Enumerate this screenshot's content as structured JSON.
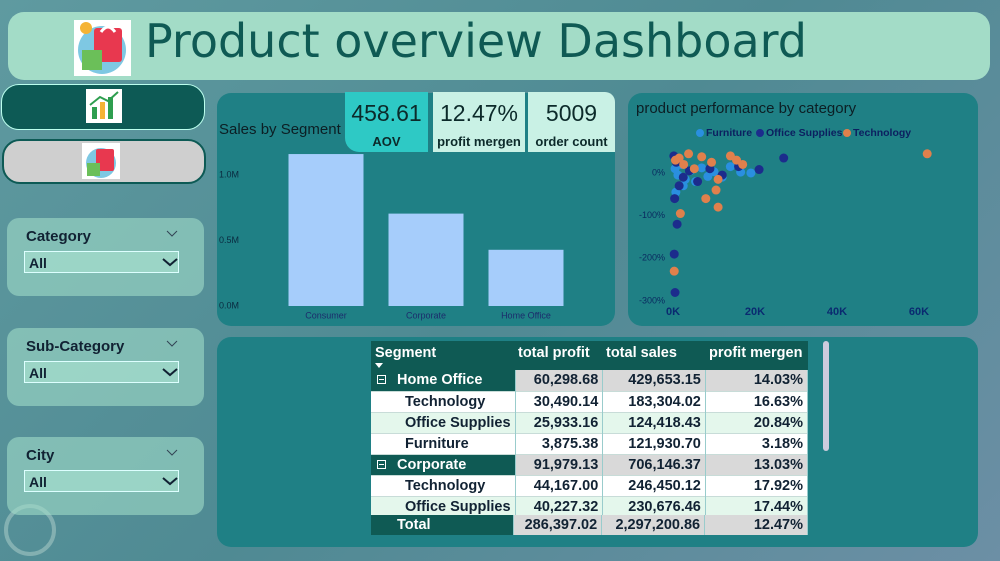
{
  "header": {
    "title": "Product overview Dashboard"
  },
  "kpis": [
    {
      "value": "458.61",
      "label": "AOV"
    },
    {
      "value": "12.47%",
      "label": "profit mergen"
    },
    {
      "value": "5009",
      "label": "order count"
    }
  ],
  "filters": [
    {
      "label": "Category",
      "selected": "All"
    },
    {
      "label": "Sub-Category",
      "selected": "All"
    },
    {
      "label": "City",
      "selected": "All"
    }
  ],
  "chart_data": [
    {
      "type": "bar",
      "title": "Sales by Segment",
      "categories": [
        "Consumer",
        "Corporate",
        "Home Office"
      ],
      "values": [
        1161401.34,
        706146.37,
        429653.15
      ],
      "color": "#a6cdfb",
      "ylim": [
        0,
        1200000
      ],
      "yticks": [
        {
          "value": 0,
          "label": "0.0M"
        },
        {
          "value": 500000,
          "label": "0.5M"
        },
        {
          "value": 1000000,
          "label": "1.0M"
        }
      ]
    },
    {
      "type": "scatter",
      "title": "product performance by category",
      "series": [
        {
          "name": "Furniture",
          "color": "#2a8fe0",
          "x": [
            500,
            1200,
            2000,
            3000,
            4200,
            5500,
            7000,
            8500,
            10000,
            12000,
            14000,
            16500,
            19000,
            700,
            2500
          ],
          "values": [
            10,
            -5,
            20,
            -15,
            5,
            -20,
            12,
            -8,
            3,
            -10,
            15,
            2,
            0,
            -45,
            -30
          ]
        },
        {
          "name": "Office Supplies",
          "color": "#1c2c8c",
          "x": [
            200,
            400,
            800,
            1500,
            2500,
            4000,
            6000,
            9000,
            12000,
            16000,
            21000,
            27000,
            300,
            500,
            1000
          ],
          "values": [
            40,
            -60,
            25,
            -30,
            -10,
            5,
            -20,
            10,
            -5,
            15,
            8,
            35,
            -190,
            -280,
            -120
          ]
        },
        {
          "name": "Technology",
          "color": "#e0804c",
          "x": [
            600,
            1500,
            2600,
            3800,
            5200,
            7000,
            9400,
            11000,
            14000,
            17000,
            11000,
            8000,
            10500,
            15500,
            62000,
            300,
            1800
          ],
          "values": [
            30,
            35,
            20,
            45,
            10,
            38,
            25,
            -15,
            40,
            20,
            -80,
            -60,
            -40,
            30,
            45,
            -230,
            -95
          ]
        }
      ],
      "xlim": [
        0,
        63000
      ],
      "ylim": [
        -310,
        55
      ],
      "xticks": [
        {
          "value": 0,
          "label": "0K"
        },
        {
          "value": 20000,
          "label": "20K"
        },
        {
          "value": 40000,
          "label": "40K"
        },
        {
          "value": 60000,
          "label": "60K"
        }
      ],
      "yticks": [
        {
          "value": 0,
          "label": "0%"
        },
        {
          "value": -100,
          "label": "-100%"
        },
        {
          "value": -200,
          "label": "-200%"
        },
        {
          "value": -300,
          "label": "-300%"
        }
      ]
    }
  ],
  "table": {
    "columns": [
      "Segment",
      "total profit",
      "total sales",
      "profit mergen"
    ],
    "rows": [
      [
        "Home Office",
        "60,298.68",
        "429,653.15",
        "14.03%"
      ],
      [
        "Technology",
        "30,490.14",
        "183,304.02",
        "16.63%"
      ],
      [
        "Office Supplies",
        "25,933.16",
        "124,418.43",
        "20.84%"
      ],
      [
        "Furniture",
        "3,875.38",
        "121,930.70",
        "3.18%"
      ],
      [
        "Corporate",
        "91,979.13",
        "706,146.37",
        "13.03%"
      ],
      [
        "Technology",
        "44,167.00",
        "246,450.12",
        "17.92%"
      ],
      [
        "Office Supplies",
        "40,227.32",
        "230,676.46",
        "17.44%"
      ]
    ],
    "total": [
      "Total",
      "286,397.02",
      "2,297,200.86",
      "12.47%"
    ]
  }
}
